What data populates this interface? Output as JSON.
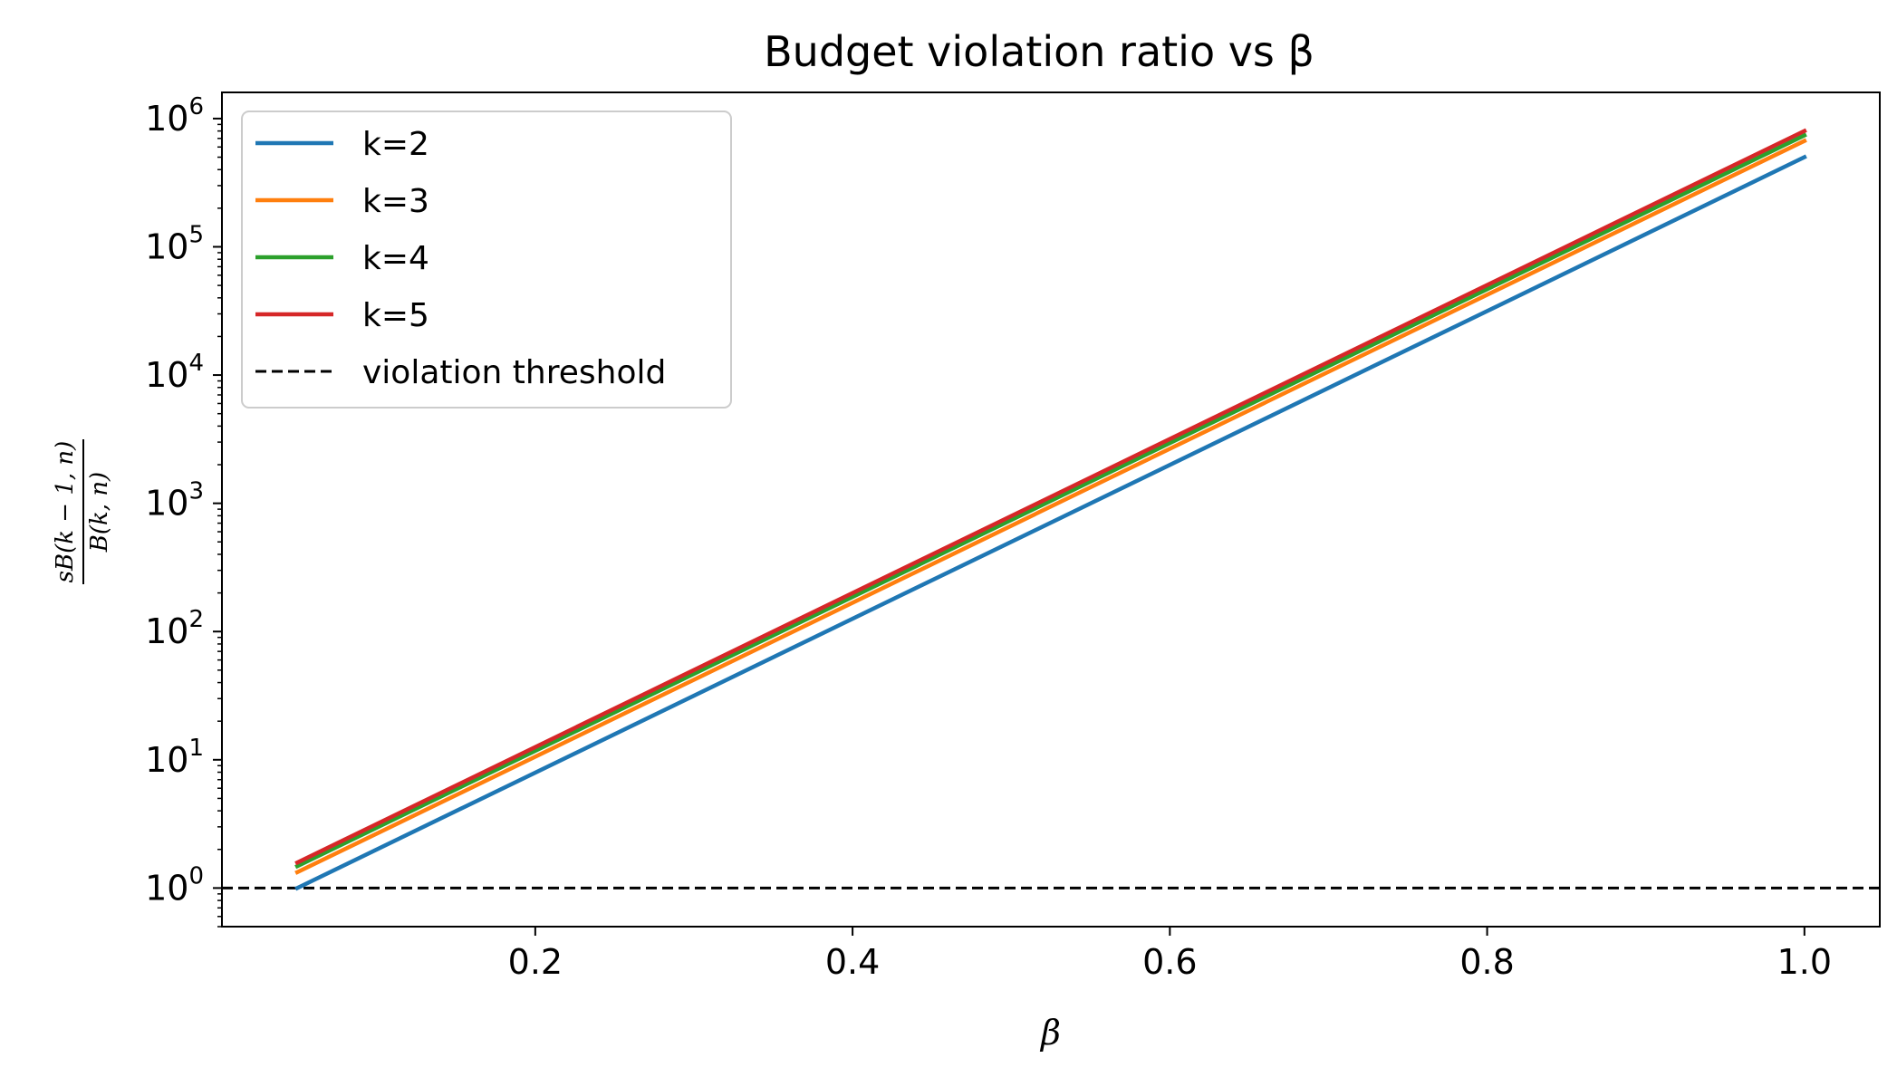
{
  "chart_data": {
    "type": "line",
    "title": "Budget violation ratio vs β",
    "xlabel": "β",
    "ylabel_numerator": "sB(k − 1, n)",
    "ylabel_denominator": "B(k, n)",
    "yscale": "log",
    "xlim": [
      0.0025,
      1.0475
    ],
    "ylim": [
      0.5,
      1600000
    ],
    "xticks": [
      0.2,
      0.4,
      0.6,
      0.8,
      1.0
    ],
    "xtick_labels": [
      "0.2",
      "0.4",
      "0.6",
      "0.8",
      "1.0"
    ],
    "yticks": [
      1,
      10,
      100,
      1000,
      10000,
      100000,
      1000000
    ],
    "ytick_labels": [
      {
        "base": "10",
        "exp": "0"
      },
      {
        "base": "10",
        "exp": "1"
      },
      {
        "base": "10",
        "exp": "2"
      },
      {
        "base": "10",
        "exp": "3"
      },
      {
        "base": "10",
        "exp": "4"
      },
      {
        "base": "10",
        "exp": "5"
      },
      {
        "base": "10",
        "exp": "6"
      }
    ],
    "legend_position": "upper-left",
    "grid": false,
    "series": [
      {
        "name": "k=2",
        "color": "#1f77b4",
        "x": [
          0.05,
          1.0
        ],
        "y": [
          1.0,
          500000
        ]
      },
      {
        "name": "k=3",
        "color": "#ff7f0e",
        "x": [
          0.05,
          1.0
        ],
        "y": [
          1.33,
          670000
        ]
      },
      {
        "name": "k=4",
        "color": "#2ca02c",
        "x": [
          0.05,
          1.0
        ],
        "y": [
          1.48,
          740000
        ]
      },
      {
        "name": "k=5",
        "color": "#d62728",
        "x": [
          0.05,
          1.0
        ],
        "y": [
          1.58,
          800000
        ]
      }
    ],
    "threshold": {
      "name": "violation threshold",
      "y": 1,
      "color": "#000000",
      "style": "dashed"
    }
  }
}
